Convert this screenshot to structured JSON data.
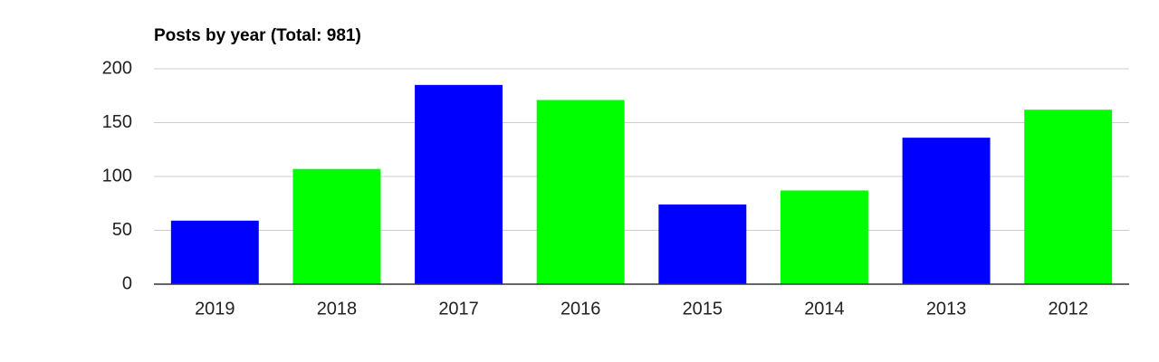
{
  "chart_data": {
    "type": "bar",
    "title": "Posts by year (Total: 981)",
    "categories": [
      "2019",
      "2018",
      "2017",
      "2016",
      "2015",
      "2014",
      "2013",
      "2012"
    ],
    "values": [
      59,
      107,
      185,
      171,
      74,
      87,
      136,
      162
    ],
    "colors": [
      "#0000ff",
      "#00ff00",
      "#0000ff",
      "#00ff00",
      "#0000ff",
      "#00ff00",
      "#0000ff",
      "#00ff00"
    ],
    "ylim": [
      0,
      200
    ],
    "yticks": [
      0,
      50,
      100,
      150,
      200
    ],
    "grid": true
  }
}
